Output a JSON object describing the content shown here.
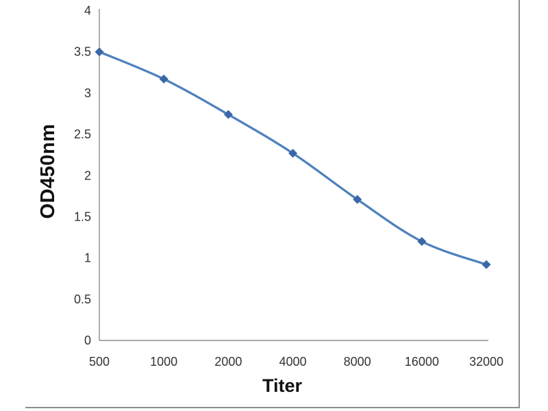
{
  "chart_data": {
    "type": "line",
    "title": "",
    "xlabel": "Titer",
    "ylabel": "OD450nm",
    "categories": [
      "500",
      "1000",
      "2000",
      "4000",
      "8000",
      "16000",
      "32000"
    ],
    "values": [
      3.5,
      3.17,
      2.74,
      2.27,
      1.71,
      1.2,
      0.92
    ],
    "ylim": [
      0,
      4
    ],
    "yticks": [
      "4",
      "3.5",
      "3",
      "2.5",
      "2",
      "1.5",
      "1",
      "0.5",
      "0"
    ],
    "grid": "off",
    "legend": "none",
    "smooth_line": true,
    "marker_shape": "diamond",
    "colors": {
      "line": "#4f81bd",
      "marker": "#3a67a8",
      "axis_line": "#8c8c8c",
      "tick_text": "#333333",
      "title_text": "#111111",
      "frame_border": "#8f8f8f",
      "background": "#ffffff"
    }
  }
}
